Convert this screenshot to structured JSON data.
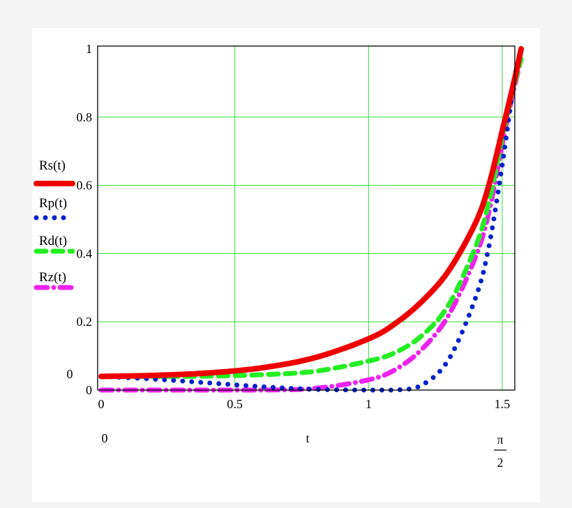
{
  "chart_data": {
    "type": "line",
    "x_label": "t",
    "x_range_labels": {
      "min": "0",
      "max_numerator": "π",
      "max_denominator": "2"
    },
    "y_range_labels": {
      "min": "0"
    },
    "xlim": [
      0,
      1.5708
    ],
    "ylim": [
      0,
      1
    ],
    "grid": true,
    "grid_color": "#33dd33",
    "x_ticks": [
      {
        "value": 0,
        "label": "0"
      },
      {
        "value": 0.5,
        "label": "0.5"
      },
      {
        "value": 1,
        "label": "1"
      },
      {
        "value": 1.5,
        "label": "1.5"
      }
    ],
    "y_ticks": [
      {
        "value": 0,
        "label": "0"
      },
      {
        "value": 0.2,
        "label": "0.2"
      },
      {
        "value": 0.4,
        "label": "0.4"
      },
      {
        "value": 0.6,
        "label": "0.6"
      },
      {
        "value": 0.8,
        "label": "0.8"
      },
      {
        "value": 1,
        "label": "1"
      }
    ],
    "legend_position": "left",
    "x": [
      0,
      0.2,
      0.4,
      0.6,
      0.8,
      1.0,
      1.1,
      1.2,
      1.3,
      1.4,
      1.45,
      1.5,
      1.54,
      1.5708
    ],
    "series": [
      {
        "name": "Rs(t)",
        "color": "#ee0000",
        "style": "solid",
        "values": [
          0.04,
          0.043,
          0.05,
          0.065,
          0.095,
          0.15,
          0.195,
          0.26,
          0.35,
          0.49,
          0.6,
          0.76,
          0.89,
          1.0
        ]
      },
      {
        "name": "Rp(t)",
        "color": "#0022cc",
        "style": "dotted",
        "values": [
          0.04,
          0.032,
          0.021,
          0.01,
          0.002,
          0.0,
          0.0,
          0.015,
          0.09,
          0.27,
          0.42,
          0.66,
          0.88,
          1.0
        ]
      },
      {
        "name": "Rd(t)",
        "color": "#22ee22",
        "style": "dashed",
        "values": [
          0.04,
          0.04,
          0.041,
          0.045,
          0.055,
          0.085,
          0.11,
          0.16,
          0.25,
          0.42,
          0.55,
          0.74,
          0.88,
          0.97
        ]
      },
      {
        "name": "Rz(t)",
        "color": "#ee22ee",
        "style": "dashdot",
        "values": [
          0.0,
          0.0,
          0.0,
          0.0,
          0.005,
          0.03,
          0.06,
          0.12,
          0.22,
          0.39,
          0.52,
          0.72,
          0.87,
          0.97
        ]
      }
    ]
  }
}
